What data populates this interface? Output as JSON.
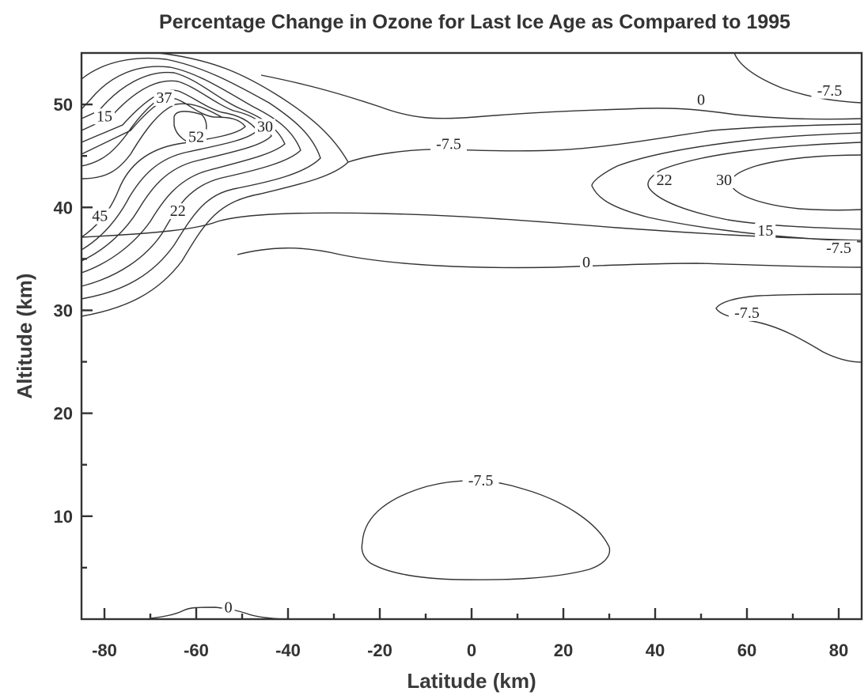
{
  "chart_data": {
    "type": "contour",
    "title": "Percentage Change in Ozone for Last Ice Age as Compared to 1995",
    "xlabel": "Latitude (km)",
    "ylabel": "Altitude (km)",
    "xlim": [
      -85,
      85
    ],
    "ylim": [
      0,
      55
    ],
    "x_ticks": [
      -80,
      -60,
      -40,
      -20,
      0,
      20,
      40,
      60,
      80
    ],
    "y_ticks": [
      10,
      20,
      30,
      40,
      50
    ],
    "grid": false,
    "contour_labels": [
      {
        "text": "15",
        "x": -80,
        "y": 48.6
      },
      {
        "text": "37",
        "x": -67,
        "y": 50.4
      },
      {
        "text": "52",
        "x": -60,
        "y": 46.6
      },
      {
        "text": "30",
        "x": -45,
        "y": 47.6
      },
      {
        "text": "45",
        "x": -81,
        "y": 38.9
      },
      {
        "text": "22",
        "x": -64,
        "y": 39.4
      },
      {
        "text": "-7.5",
        "x": -5,
        "y": 45.9
      },
      {
        "text": "0",
        "x": 50,
        "y": 50.2
      },
      {
        "text": "-7.5",
        "x": 78,
        "y": 51.1
      },
      {
        "text": "22",
        "x": 42,
        "y": 42.4
      },
      {
        "text": "30",
        "x": 55,
        "y": 42.4
      },
      {
        "text": "15",
        "x": 64,
        "y": 37.5
      },
      {
        "text": "-7.5",
        "x": 80,
        "y": 35.8
      },
      {
        "text": "0",
        "x": 25,
        "y": 34.4
      },
      {
        "text": "-7.5",
        "x": 60,
        "y": 29.5
      },
      {
        "text": "-7.5",
        "x": 2,
        "y": 13.2
      },
      {
        "text": "0",
        "x": -53,
        "y": 0.9
      }
    ]
  }
}
